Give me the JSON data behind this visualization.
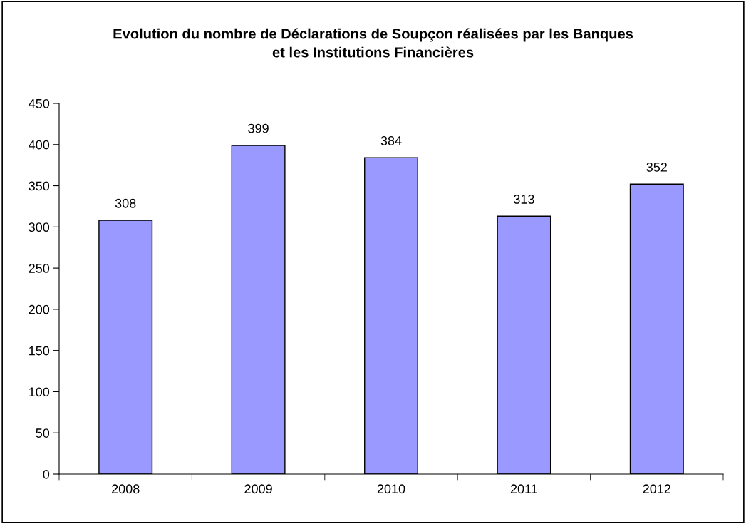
{
  "chart_data": {
    "type": "bar",
    "title": "Evolution du nombre de Déclarations de Soupçon réalisées par les Banques\net les Institutions Financières",
    "categories": [
      "2008",
      "2009",
      "2010",
      "2011",
      "2012"
    ],
    "values": [
      308,
      399,
      384,
      313,
      352
    ],
    "color": "#9999ff",
    "ylim": [
      0,
      450
    ],
    "yticks": [
      0,
      50,
      100,
      150,
      200,
      250,
      300,
      350,
      400,
      450
    ],
    "grid": false,
    "legend": false,
    "data_labels": true
  }
}
